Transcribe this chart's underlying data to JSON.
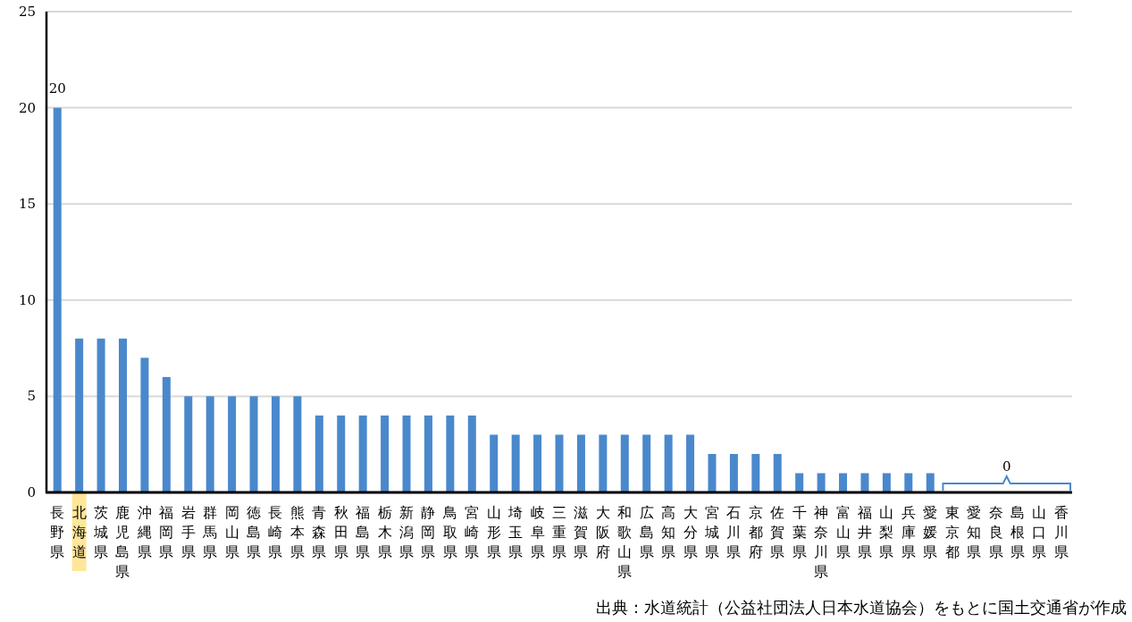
{
  "chart_data": {
    "type": "bar",
    "categories": [
      "長野県",
      "北海道",
      "茨城県",
      "鹿児島県",
      "沖縄県",
      "福岡県",
      "岩手県",
      "群馬県",
      "岡山県",
      "徳島県",
      "長崎県",
      "熊本県",
      "青森県",
      "秋田県",
      "福島県",
      "栃木県",
      "新潟県",
      "静岡県",
      "鳥取県",
      "宮崎県",
      "山形県",
      "埼玉県",
      "岐阜県",
      "三重県",
      "滋賀県",
      "大阪府",
      "和歌山県",
      "広島県",
      "高知県",
      "大分県",
      "宮城県",
      "石川県",
      "京都府",
      "佐賀県",
      "千葉県",
      "神奈川県",
      "富山県",
      "福井県",
      "山梨県",
      "兵庫県",
      "愛媛県",
      "東京都",
      "愛知県",
      "奈良県",
      "島根県",
      "山口県",
      "香川県"
    ],
    "values": [
      20,
      8,
      8,
      8,
      7,
      6,
      5,
      5,
      5,
      5,
      5,
      5,
      4,
      4,
      4,
      4,
      4,
      4,
      4,
      4,
      3,
      3,
      3,
      3,
      3,
      3,
      3,
      3,
      3,
      3,
      2,
      2,
      2,
      2,
      1,
      1,
      1,
      1,
      1,
      1,
      1,
      0,
      0,
      0,
      0,
      0,
      0
    ],
    "value_labels": [
      "20",
      null,
      null,
      null,
      null,
      null,
      null,
      null,
      null,
      null,
      null,
      null,
      null,
      null,
      null,
      null,
      null,
      null,
      null,
      null,
      null,
      null,
      null,
      null,
      null,
      null,
      null,
      null,
      null,
      null,
      null,
      null,
      null,
      null,
      null,
      null,
      null,
      null,
      null,
      null,
      null,
      null,
      null,
      null,
      null,
      null,
      null
    ],
    "color": "#4a88cc",
    "ylim": [
      0,
      25
    ],
    "yticks": [
      0,
      5,
      10,
      15,
      20,
      25
    ],
    "grid": "y",
    "annotations": [
      "0",
      "出典：水道統計（公益社団法人日本水道協会）をもとに国土交通省が作成"
    ]
  }
}
